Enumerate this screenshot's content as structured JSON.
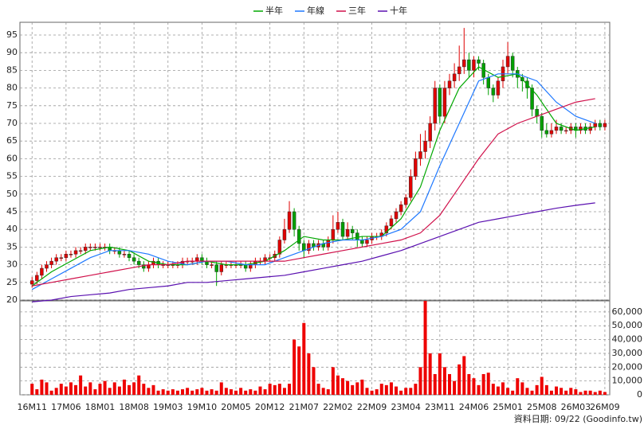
{
  "chart_data": {
    "type": "candlestick",
    "x": [
      0,
      1,
      2,
      3,
      4,
      5,
      6,
      7,
      8,
      9,
      10,
      11,
      12,
      13,
      14,
      15,
      16,
      17,
      18,
      19,
      20,
      21,
      22,
      23,
      24,
      25,
      26,
      27,
      28,
      29,
      30,
      31,
      32,
      33,
      34,
      35,
      36,
      37,
      38,
      39,
      40,
      41,
      42,
      43,
      44,
      45,
      46,
      47,
      48,
      49,
      50,
      51,
      52,
      53,
      54,
      55,
      56,
      57,
      58,
      59,
      60,
      61,
      62,
      63,
      64,
      65,
      66,
      67,
      68,
      69,
      70,
      71,
      72,
      73,
      74,
      75,
      76,
      77,
      78,
      79,
      80,
      81,
      82,
      83,
      84,
      85,
      86,
      87,
      88,
      89,
      90,
      91,
      92,
      93,
      94,
      95,
      96,
      97,
      98,
      99,
      100,
      101,
      102,
      103,
      104,
      105,
      106,
      107,
      108,
      109,
      110,
      111,
      112,
      113,
      114,
      115,
      116,
      117,
      118
    ],
    "open": [
      24.5,
      25.5,
      27,
      29,
      30,
      31,
      32,
      32,
      33,
      33,
      34,
      34,
      35,
      35,
      35,
      35,
      35,
      34,
      34,
      33,
      33,
      32,
      31,
      30,
      29,
      30,
      31,
      30,
      30,
      30,
      30,
      30,
      31,
      31,
      31,
      32,
      31,
      30,
      30,
      28,
      30,
      30,
      30,
      30,
      30,
      29,
      30,
      31,
      31,
      32,
      32,
      33,
      37,
      40,
      45,
      40,
      36,
      34,
      36,
      35,
      36,
      35,
      37,
      40,
      42,
      38,
      40,
      39,
      37,
      36,
      37,
      38,
      38,
      39,
      41,
      43,
      45,
      47,
      49,
      55,
      60,
      62,
      65,
      70,
      80,
      72,
      80,
      82,
      84,
      86,
      88,
      85,
      88,
      87,
      83,
      80,
      78,
      82,
      86,
      89,
      85,
      83,
      82,
      80,
      74,
      72,
      68,
      67,
      68,
      69,
      68,
      68,
      69,
      68,
      69,
      68,
      69,
      70,
      69
    ],
    "high": [
      26.5,
      28,
      30,
      31,
      32,
      33,
      33,
      34,
      34,
      35,
      35,
      36,
      36,
      36,
      36,
      36,
      36,
      35,
      35,
      34,
      34,
      33,
      32,
      31,
      31,
      32,
      32,
      31,
      31,
      31,
      31,
      32,
      32,
      32,
      33,
      33,
      32,
      31,
      31,
      31,
      31,
      31,
      31,
      31,
      31,
      31,
      32,
      32,
      33,
      33,
      34,
      38,
      43,
      48,
      46,
      41,
      37,
      37,
      37,
      37,
      37,
      38,
      44,
      45,
      43,
      42,
      41,
      40,
      38,
      38,
      39,
      39,
      40,
      42,
      44,
      46,
      48,
      50,
      57,
      62,
      67,
      68,
      72,
      82,
      81,
      82,
      84,
      87,
      92,
      97,
      90,
      89,
      89,
      88,
      84,
      81,
      83,
      88,
      93,
      90,
      86,
      84,
      83,
      81,
      75,
      73,
      70,
      70,
      71,
      70,
      69,
      70,
      70,
      70,
      70,
      70,
      71,
      71,
      71
    ],
    "low": [
      23.5,
      24.5,
      26,
      28,
      29,
      30,
      31,
      31,
      32,
      32,
      33,
      33,
      34,
      34,
      34,
      34,
      33,
      33,
      32,
      32,
      31,
      30,
      29,
      28,
      28,
      29,
      29,
      29,
      29,
      29,
      29,
      29,
      30,
      30,
      30,
      30,
      29,
      29,
      24,
      27,
      29,
      29,
      29,
      29,
      28,
      28,
      29,
      30,
      30,
      31,
      31,
      32,
      36,
      39,
      38,
      34,
      32,
      33,
      34,
      34,
      34,
      34,
      36,
      39,
      37,
      37,
      37,
      35,
      35,
      35,
      36,
      37,
      37,
      38,
      40,
      42,
      44,
      46,
      48,
      54,
      58,
      60,
      63,
      68,
      70,
      70,
      78,
      80,
      82,
      84,
      83,
      83,
      85,
      81,
      78,
      76,
      77,
      80,
      84,
      83,
      80,
      79,
      77,
      72,
      70,
      66,
      66,
      66,
      67,
      67,
      67,
      67,
      66,
      67,
      67,
      67,
      68,
      68,
      68
    ],
    "close": [
      25.5,
      27,
      29,
      30,
      31,
      32,
      32,
      33,
      33,
      34,
      34,
      35,
      35,
      35,
      35,
      35,
      34,
      34,
      33,
      33,
      32,
      31,
      30,
      29,
      30,
      31,
      30,
      30,
      30,
      30,
      30,
      31,
      31,
      31,
      32,
      31,
      30,
      30,
      28,
      30,
      30,
      30,
      30,
      30,
      29,
      30,
      31,
      31,
      32,
      32,
      33,
      37,
      40,
      45,
      40,
      36,
      34,
      36,
      35,
      36,
      35,
      37,
      40,
      42,
      38,
      40,
      39,
      37,
      36,
      37,
      38,
      38,
      39,
      41,
      43,
      45,
      47,
      49,
      55,
      60,
      62,
      65,
      70,
      80,
      72,
      80,
      82,
      84,
      86,
      88,
      85,
      88,
      87,
      83,
      80,
      78,
      82,
      86,
      89,
      85,
      83,
      82,
      80,
      74,
      72,
      68,
      67,
      68,
      69,
      68,
      68,
      69,
      68,
      69,
      68,
      69,
      70,
      69,
      70
    ],
    "up_color": "#e00000",
    "down_color": "#00a000",
    "xlim": [
      -2.5,
      119
    ],
    "xticks": [
      {
        "value": 0,
        "label": "16M11"
      },
      {
        "value": 7,
        "label": "17M06"
      },
      {
        "value": 14,
        "label": "18M01"
      },
      {
        "value": 21,
        "label": "18M08"
      },
      {
        "value": 28,
        "label": "19M03"
      },
      {
        "value": 35,
        "label": "19M10"
      },
      {
        "value": 42,
        "label": "20M05"
      },
      {
        "value": 49,
        "label": "20M12"
      },
      {
        "value": 56,
        "label": "21M07"
      },
      {
        "value": 63,
        "label": "22M02"
      },
      {
        "value": 70,
        "label": "22M09"
      },
      {
        "value": 77,
        "label": "23M04"
      },
      {
        "value": 84,
        "label": "23M11"
      },
      {
        "value": 91,
        "label": "24M06"
      },
      {
        "value": 98,
        "label": "25M01"
      },
      {
        "value": 105,
        "label": "25M08"
      },
      {
        "value": 112,
        "label": "26M03"
      },
      {
        "value": 118,
        "label": "26M09"
      }
    ],
    "ylim": [
      20,
      98.6
    ],
    "yticks": [
      20,
      25,
      30,
      35,
      40,
      45,
      50,
      55,
      60,
      65,
      70,
      75,
      80,
      85,
      90,
      95
    ],
    "grid": true,
    "series": [
      {
        "name": "半年",
        "color": "#00a800",
        "x": [
          0,
          4,
          8,
          12,
          16,
          20,
          24,
          28,
          32,
          36,
          40,
          44,
          48,
          52,
          56,
          60,
          64,
          68,
          72,
          76,
          80,
          84,
          88,
          92,
          96,
          100,
          104,
          108,
          112,
          116
        ],
        "values": [
          24,
          28,
          31,
          34,
          35,
          34,
          31,
          30,
          30,
          31,
          30,
          30,
          31,
          34,
          38,
          37,
          37,
          38,
          38,
          43,
          52,
          68,
          80,
          86,
          83,
          84,
          78,
          70,
          68,
          69
        ]
      },
      {
        "name": "年線",
        "color": "#1e78ff",
        "x": [
          0,
          4,
          8,
          12,
          16,
          20,
          24,
          28,
          32,
          36,
          40,
          44,
          48,
          52,
          56,
          60,
          64,
          68,
          72,
          76,
          80,
          84,
          88,
          92,
          96,
          100,
          104,
          108,
          112,
          116
        ],
        "values": [
          23,
          26,
          29,
          32,
          34,
          34,
          33,
          31,
          30,
          31,
          31,
          30,
          30,
          32,
          34,
          36,
          37,
          37,
          38,
          40,
          45,
          58,
          70,
          82,
          84,
          84,
          82,
          76,
          72,
          70
        ]
      },
      {
        "name": "三年",
        "color": "#d0104a",
        "x": [
          0,
          4,
          8,
          12,
          16,
          20,
          24,
          28,
          32,
          36,
          40,
          44,
          48,
          52,
          56,
          60,
          64,
          68,
          72,
          76,
          80,
          84,
          88,
          92,
          96,
          100,
          104,
          108,
          112,
          116
        ],
        "values": [
          24,
          25,
          26,
          27,
          28,
          29,
          30,
          30,
          31,
          31,
          31,
          31,
          31,
          31,
          32,
          33,
          34,
          35,
          36,
          37,
          39,
          44,
          52,
          60,
          67,
          70,
          72,
          74,
          76,
          77
        ]
      },
      {
        "name": "十年",
        "color": "#5a10b0",
        "x": [
          0,
          4,
          8,
          12,
          16,
          20,
          24,
          28,
          32,
          36,
          40,
          44,
          48,
          52,
          56,
          60,
          64,
          68,
          72,
          76,
          80,
          84,
          88,
          92,
          96,
          100,
          104,
          108,
          112,
          116
        ],
        "values": [
          19.5,
          20,
          21,
          21.5,
          22,
          23,
          23.5,
          24,
          25,
          25,
          25.5,
          26,
          26.5,
          27,
          28,
          29,
          30,
          31,
          32.5,
          34,
          36,
          38,
          40,
          42,
          43,
          44,
          45,
          46,
          46.8,
          47.5
        ]
      }
    ],
    "volume": {
      "color": "#ee0000",
      "values": [
        8000,
        4000,
        11000,
        9000,
        3000,
        5000,
        8000,
        6000,
        9000,
        7000,
        14000,
        6000,
        9000,
        4000,
        8000,
        10000,
        5000,
        9000,
        6000,
        11000,
        7000,
        9000,
        14000,
        8000,
        5000,
        7000,
        3000,
        4000,
        3000,
        4000,
        3000,
        4000,
        5000,
        3000,
        4000,
        5000,
        3000,
        4000,
        3000,
        9000,
        5000,
        4000,
        3000,
        5000,
        3000,
        4000,
        3000,
        6000,
        4000,
        8000,
        7000,
        8000,
        5000,
        8000,
        40000,
        35000,
        52000,
        30000,
        20000,
        8000,
        5000,
        4000,
        20000,
        14000,
        12000,
        10000,
        7000,
        9000,
        11000,
        5000,
        3000,
        4000,
        8000,
        7000,
        9000,
        6000,
        3000,
        5000,
        5000,
        8000,
        20000,
        68000,
        30000,
        15000,
        30000,
        20000,
        15000,
        10000,
        22000,
        28000,
        15000,
        12000,
        7000,
        15000,
        16000,
        8000,
        6000,
        9000,
        5000,
        3000,
        12000,
        9000,
        5000,
        3000,
        7000,
        13000,
        7000,
        3000,
        6000,
        5000,
        3000,
        5000,
        4000,
        2000,
        3000,
        3000,
        2000,
        3000,
        2000
      ],
      "ylim": [
        0,
        68000
      ],
      "yticks": [
        0,
        {
          "value": 10000,
          "label": "10,000"
        },
        {
          "value": 20000,
          "label": "20,000"
        },
        {
          "value": 30000,
          "label": "30,000"
        },
        {
          "value": 40000,
          "label": "40,000"
        },
        {
          "value": 50000,
          "label": "50,000"
        },
        {
          "value": 60000,
          "label": "60,000"
        }
      ]
    },
    "footnote": "資料日期: 09/22  (Goodinfo.tw)"
  }
}
